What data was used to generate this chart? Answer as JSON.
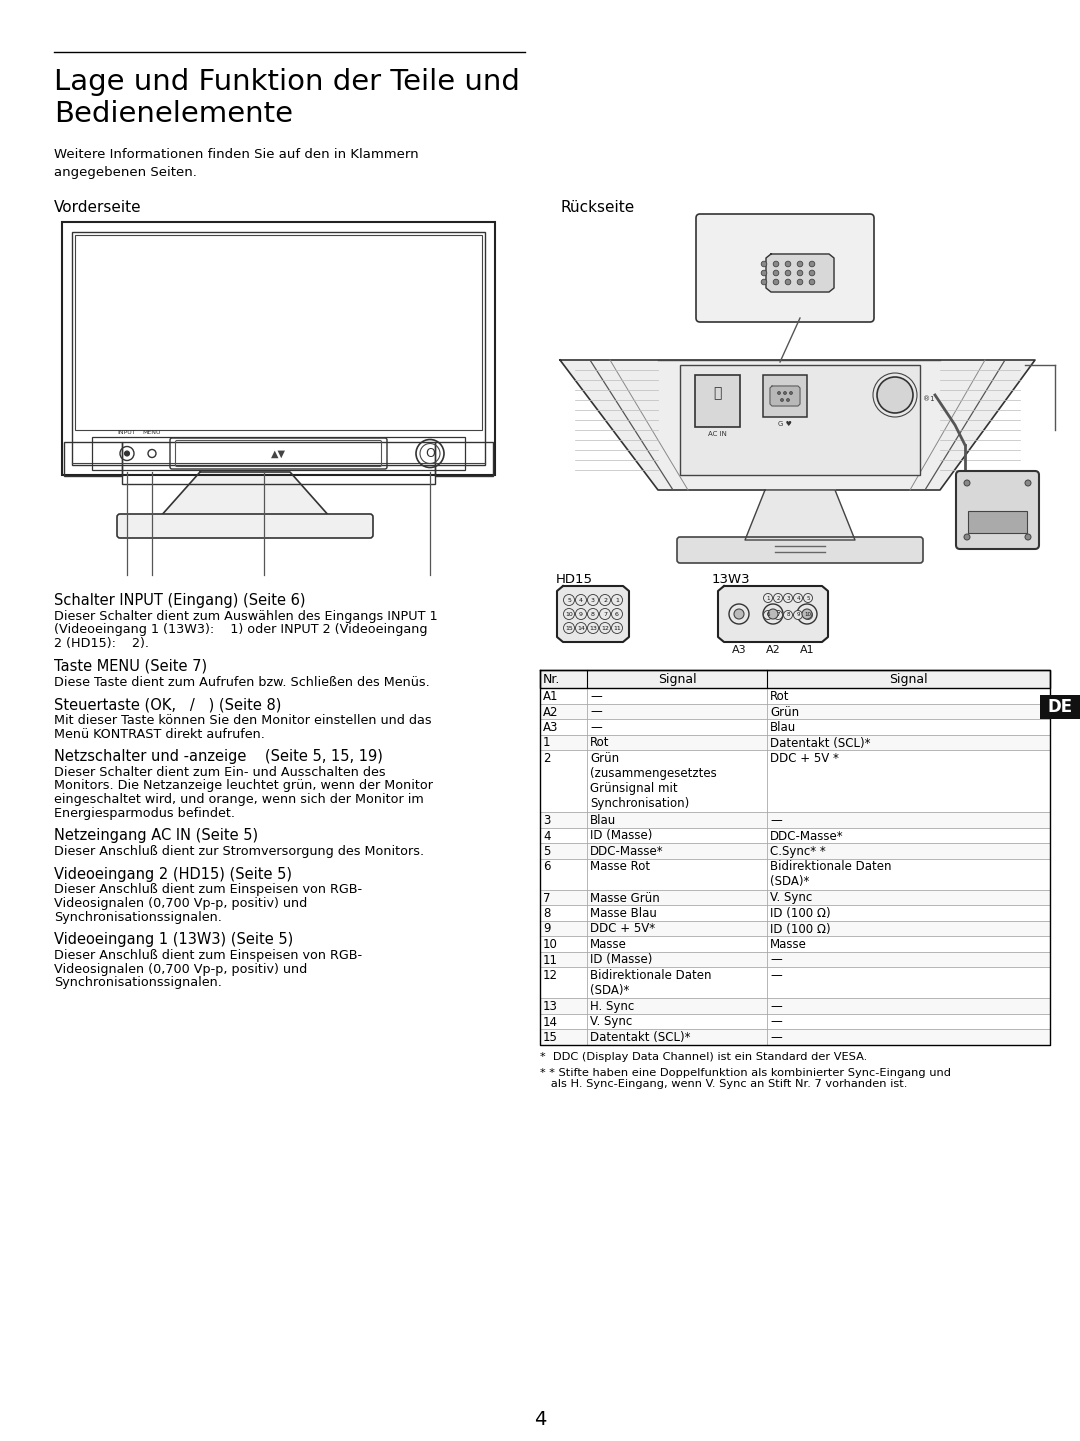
{
  "title_line1": "Lage und Funktion der Teile und",
  "title_line2": "Bedienelemente",
  "subtitle": "Weitere Informationen finden Sie auf den in Klammern\nangegebenen Seiten.",
  "vorderseite_label": "Vorderseite",
  "rueckseite_label": "Rückseite",
  "left_sections": [
    {
      "heading": "Schalter INPUT (Eingang) (Seite 6)",
      "body": "Dieser Schalter dient zum Auswählen des Eingangs INPUT 1\n(Videoeingang 1 (13W3):    1) oder INPUT 2 (Videoeingang\n2 (HD15):    2)."
    },
    {
      "heading": "Taste MENU (Seite 7)",
      "body": "Diese Taste dient zum Aufrufen bzw. Schließen des Menüs."
    },
    {
      "heading": "Steuertaste (OK,   /   ) (Seite 8)",
      "body": "Mit dieser Taste können Sie den Monitor einstellen und das\nMenü KONTRAST direkt aufrufen."
    },
    {
      "heading": "Netzschalter und -anzeige    (Seite 5, 15, 19)",
      "body": "Dieser Schalter dient zum Ein- und Ausschalten des\nMonitors. Die Netzanzeige leuchtet grün, wenn der Monitor\neingeschaltet wird, und orange, wenn sich der Monitor im\nEnergiesparmodus befindet."
    },
    {
      "heading": "Netzeingang AC IN (Seite 5)",
      "body": "Dieser Anschluß dient zur Stromversorgung des Monitors."
    },
    {
      "heading": "Videoeingang 2 (HD15) (Seite 5)",
      "body": "Dieser Anschluß dient zum Einspeisen von RGB-\nVideosignalen (0,700 Vp-p, positiv) und\nSynchronisationssignalen."
    },
    {
      "heading": "Videoeingang 1 (13W3) (Seite 5)",
      "body": "Dieser Anschluß dient zum Einspeisen von RGB-\nVideosignalen (0,700 Vp-p, positiv) und\nSynchronisationssignalen."
    }
  ],
  "table_header": [
    "Nr.",
    "Signal",
    "Signal"
  ],
  "table_rows": [
    [
      "A1",
      "—",
      "Rot"
    ],
    [
      "A2",
      "—",
      "Grün"
    ],
    [
      "A3",
      "—",
      "Blau"
    ],
    [
      "1",
      "Rot",
      "Datentakt (SCL)*"
    ],
    [
      "2",
      "Grün\n(zusammengesetztes\nGrünsignal mit\nSynchronisation)",
      "DDC + 5V *"
    ],
    [
      "3",
      "Blau",
      "—"
    ],
    [
      "4",
      "ID (Masse)",
      "DDC-Masse*"
    ],
    [
      "5",
      "DDC-Masse*",
      "C.Sync* *"
    ],
    [
      "6",
      "Masse Rot",
      "Bidirektionale Daten\n(SDA)*"
    ],
    [
      "7",
      "Masse Grün",
      "V. Sync"
    ],
    [
      "8",
      "Masse Blau",
      "ID (100 Ω)"
    ],
    [
      "9",
      "DDC + 5V*",
      "ID (100 Ω)"
    ],
    [
      "10",
      "Masse",
      "Masse"
    ],
    [
      "11",
      "ID (Masse)",
      "—"
    ],
    [
      "12",
      "Bidirektionale Daten\n(SDA)*",
      "—"
    ],
    [
      "13",
      "H. Sync",
      "—"
    ],
    [
      "14",
      "V. Sync",
      "—"
    ],
    [
      "15",
      "Datentakt (SCL)*",
      "—"
    ]
  ],
  "footnote1": "*  DDC (Display Data Channel) ist ein Standard der VESA.",
  "footnote2": "* * Stifte haben eine Doppelfunktion als kombinierter Sync-Eingang und\n   als H. Sync-Eingang, wenn V. Sync an Stift Nr. 7 vorhanden ist.",
  "page_number": "4",
  "de_label": "DE",
  "hd15_label": "HD15",
  "w3_label": "13W3",
  "bg_color": "#ffffff",
  "text_color": "#000000"
}
